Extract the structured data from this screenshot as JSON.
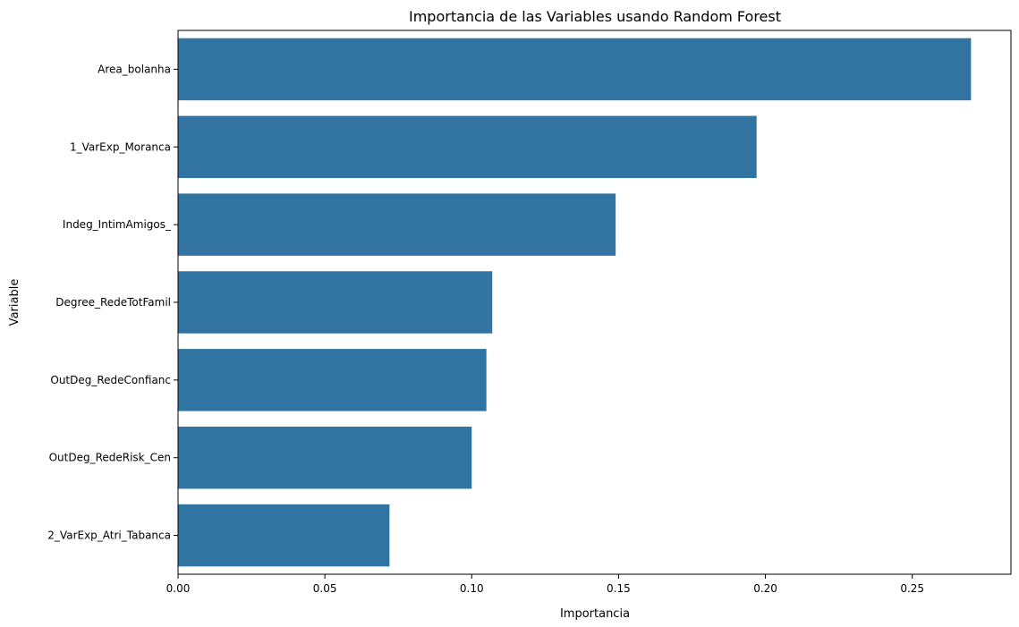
{
  "chart_data": {
    "type": "bar",
    "orientation": "horizontal",
    "title": "Importancia de las Variables usando Random Forest",
    "xlabel": "Importancia",
    "ylabel": "Variable",
    "categories": [
      "Area_bolanha",
      "1_VarExp_Moranca",
      "Indeg_IntimAmigos_",
      "Degree_RedeTotFamil",
      "OutDeg_RedeConfianc",
      "OutDeg_RedeRisk_Cen",
      "2_VarExp_Atri_Tabanca"
    ],
    "values": [
      0.27,
      0.197,
      0.149,
      0.107,
      0.105,
      0.1,
      0.072
    ],
    "xlim": [
      0,
      0.2836
    ],
    "xticks": [
      0.0,
      0.05,
      0.1,
      0.15,
      0.2,
      0.25
    ],
    "xtick_labels": [
      "0.00",
      "0.05",
      "0.10",
      "0.15",
      "0.20",
      "0.25"
    ],
    "bar_color": "#3274a1",
    "grid": false,
    "legend": "none"
  }
}
